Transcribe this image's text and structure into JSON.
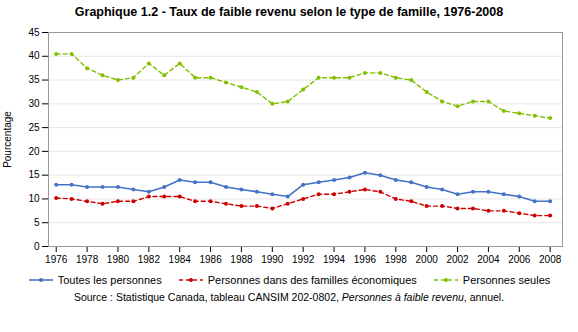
{
  "chart_data": {
    "type": "line",
    "title": "Graphique 1.2 - Taux de faible revenu selon le type de famille, 1976-2008",
    "ylabel": "Pourcentage",
    "x": [
      1976,
      1977,
      1978,
      1979,
      1980,
      1981,
      1982,
      1983,
      1984,
      1985,
      1986,
      1987,
      1988,
      1989,
      1990,
      1991,
      1992,
      1993,
      1994,
      1995,
      1996,
      1997,
      1998,
      1999,
      2000,
      2001,
      2002,
      2003,
      2004,
      2005,
      2006,
      2007,
      2008
    ],
    "series": [
      {
        "name": "Toutes les personnes",
        "color": "#4472C4",
        "line_style": "solid",
        "marker": "circle",
        "values": [
          13.0,
          13.0,
          12.5,
          12.5,
          12.5,
          12.0,
          11.5,
          12.5,
          14.0,
          13.5,
          13.5,
          12.5,
          12.0,
          11.5,
          11.0,
          10.5,
          13.0,
          13.5,
          14.0,
          14.5,
          15.5,
          15.0,
          14.0,
          13.5,
          12.5,
          12.0,
          11.0,
          11.5,
          11.5,
          11.0,
          10.5,
          9.5,
          9.5
        ]
      },
      {
        "name": "Personnes dans des familles économiques",
        "color": "#CC0000",
        "line_style": "dashed",
        "marker": "circle",
        "values": [
          10.2,
          10.0,
          9.5,
          9.0,
          9.5,
          9.5,
          10.5,
          10.5,
          10.5,
          9.5,
          9.5,
          9.0,
          8.5,
          8.5,
          8.0,
          9.0,
          10.0,
          11.0,
          11.0,
          11.5,
          12.0,
          11.5,
          10.0,
          9.5,
          8.5,
          8.5,
          8.0,
          8.0,
          7.5,
          7.5,
          7.0,
          6.5,
          6.5
        ]
      },
      {
        "name": "Personnes seules",
        "color": "#80C000",
        "line_style": "dashed",
        "marker": "circle",
        "values": [
          40.5,
          40.5,
          37.5,
          36.0,
          35.0,
          35.5,
          38.5,
          36.0,
          38.5,
          35.5,
          35.5,
          34.5,
          33.5,
          32.5,
          30.0,
          30.5,
          33.0,
          35.5,
          35.5,
          35.5,
          36.5,
          36.5,
          35.5,
          35.0,
          32.5,
          30.5,
          29.5,
          30.5,
          30.5,
          28.5,
          28.0,
          27.5,
          27.0
        ]
      }
    ],
    "xlim": [
      1975.5,
      2008.8
    ],
    "xticks": [
      1976,
      1978,
      1980,
      1982,
      1984,
      1986,
      1988,
      1990,
      1992,
      1994,
      1996,
      1998,
      2000,
      2002,
      2004,
      2006,
      2008
    ],
    "ylim": [
      0,
      45
    ],
    "yticks": [
      0,
      5,
      10,
      15,
      20,
      25,
      30,
      35,
      40,
      45
    ],
    "grid": "y",
    "legend": "bottom",
    "caption": [
      "Source : Statistique Canada, tableau CANSIM 202-0802, ",
      "Personnes à faible revenu",
      ", annuel."
    ]
  }
}
